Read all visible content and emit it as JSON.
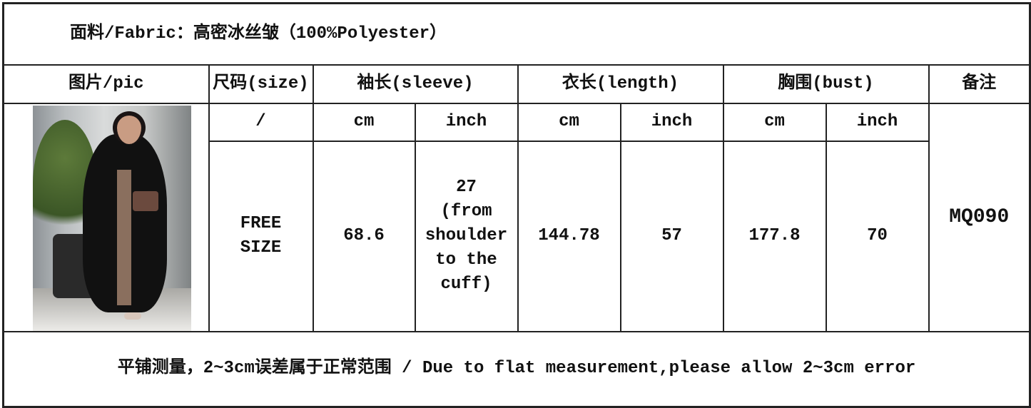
{
  "fabric": "面料/Fabric：高密冰丝皱（100%Polyester）",
  "headers": {
    "pic": "图片/pic",
    "size": "尺码(size)",
    "sleeve": "袖长(sleeve)",
    "length": "衣长(length)",
    "bust": "胸围(bust)",
    "remarks": "备注"
  },
  "units": {
    "size": "/",
    "sleeve_cm": "cm",
    "sleeve_inch": "inch",
    "length_cm": "cm",
    "length_inch": "inch",
    "bust_cm": "cm",
    "bust_inch": "inch"
  },
  "row": {
    "size_line1": "FREE",
    "size_line2": "SIZE",
    "sleeve_cm": "68.6",
    "sleeve_inch": [
      "27",
      "(from",
      "shoulder",
      "to the",
      "cuff)"
    ],
    "length_cm": "144.78",
    "length_inch": "57",
    "bust_cm": "177.8",
    "bust_inch": "70",
    "remark": "MQ090"
  },
  "footer": "平铺测量，2~3cm误差属于正常范围 / Due to flat measurement,please allow 2~3cm error"
}
